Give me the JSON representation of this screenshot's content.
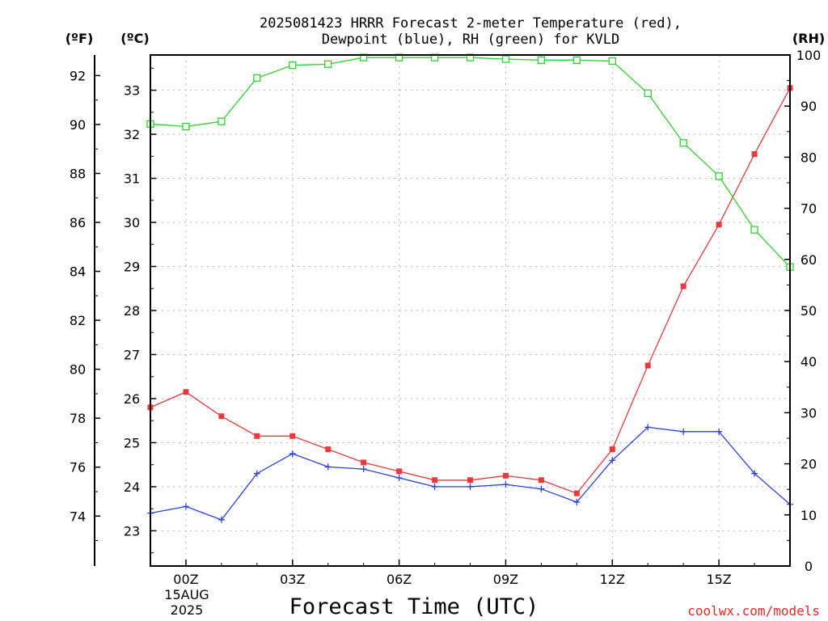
{
  "chart_data": {
    "type": "line",
    "title_line1": "2025081423 HRRR Forecast 2-meter Temperature (red),",
    "title_line2": "Dewpoint (blue), RH (green) for KVLD",
    "xlabel": "Forecast Time (UTC)",
    "credit": "coolwx.com/models",
    "units": {
      "fahrenheit": "(ºF)",
      "celsius": "(ºC)",
      "rh": "(RH)"
    },
    "x_hours": [
      -1,
      0,
      1,
      2,
      3,
      4,
      5,
      6,
      7,
      8,
      9,
      10,
      11,
      12,
      13,
      14,
      15,
      16,
      17
    ],
    "x_ticks": [
      {
        "hour": 0,
        "label": "00Z"
      },
      {
        "hour": 3,
        "label": "03Z"
      },
      {
        "hour": 6,
        "label": "06Z"
      },
      {
        "hour": 9,
        "label": "09Z"
      },
      {
        "hour": 12,
        "label": "12Z"
      },
      {
        "hour": 15,
        "label": "15Z"
      }
    ],
    "date_label_line1": "15AUG",
    "date_label_line2": "2025",
    "left_axis_f": {
      "ticks": [
        "74",
        "76",
        "78",
        "80",
        "82",
        "84",
        "86",
        "88",
        "90",
        "92"
      ]
    },
    "left_axis_c": {
      "range": [
        22.2,
        33.8
      ],
      "ticks": [
        "23",
        "24",
        "25",
        "26",
        "27",
        "28",
        "29",
        "30",
        "31",
        "32",
        "33"
      ]
    },
    "right_axis_rh": {
      "range": [
        0,
        100
      ],
      "ticks": [
        "0",
        "10",
        "20",
        "30",
        "40",
        "50",
        "60",
        "70",
        "80",
        "90",
        "100"
      ]
    },
    "grid": true,
    "series": [
      {
        "name": "Temperature",
        "color": "#e8393c",
        "marker": "filled-square",
        "axis": "celsius",
        "values": [
          25.8,
          26.15,
          25.6,
          25.15,
          25.15,
          24.85,
          24.55,
          24.35,
          24.15,
          24.15,
          24.25,
          24.15,
          23.85,
          24.85,
          26.75,
          28.55,
          29.95,
          31.55,
          33.05
        ]
      },
      {
        "name": "Dewpoint",
        "color": "#2b3fe0",
        "marker": "plus",
        "axis": "celsius",
        "values": [
          23.4,
          23.55,
          23.25,
          24.3,
          24.75,
          24.45,
          24.4,
          24.2,
          24.0,
          24.0,
          24.05,
          23.95,
          23.65,
          24.6,
          25.35,
          25.25,
          25.25,
          24.3,
          23.6
        ]
      },
      {
        "name": "RH",
        "color": "#2cd32c",
        "marker": "hollow-square",
        "axis": "rh",
        "values": [
          86.5,
          86,
          87,
          95.5,
          98,
          98.2,
          99.5,
          99.5,
          99.5,
          99.5,
          99.2,
          99,
          99,
          98.8,
          92.5,
          82.8,
          76.3,
          65.8,
          58.5
        ]
      }
    ]
  }
}
